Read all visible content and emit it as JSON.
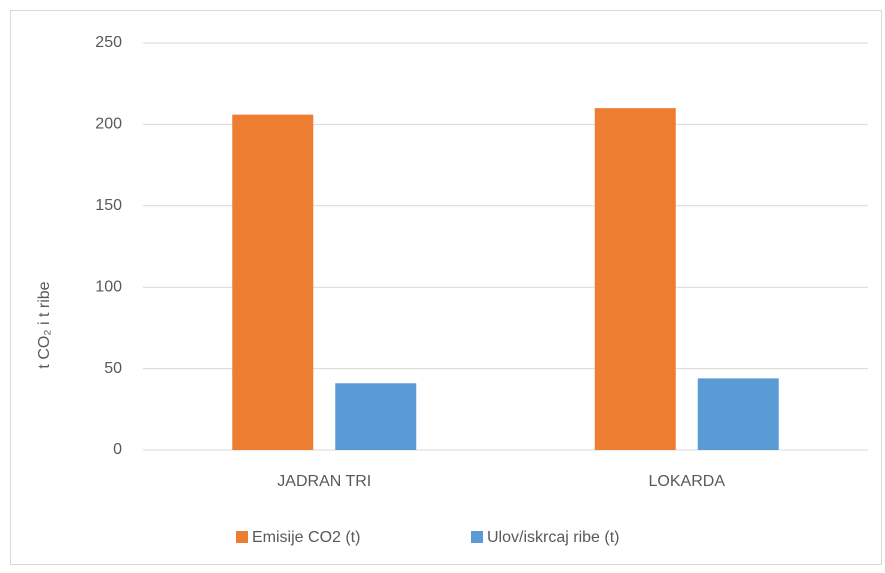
{
  "chart_data": {
    "type": "bar",
    "ylabel": "t CO₂ i t ribe",
    "categories": [
      "JADRAN TRI",
      "LOKARDA"
    ],
    "series": [
      {
        "name": "Emisije CO2 (t)",
        "color": "#ed7d31",
        "values": [
          206,
          210
        ]
      },
      {
        "name": "Ulov/iskrcaj ribe (t)",
        "color": "#5b9bd5",
        "values": [
          41,
          44
        ]
      }
    ],
    "ylim": [
      0,
      250
    ],
    "yticks": [
      0,
      50,
      100,
      150,
      200,
      250
    ],
    "grid": true,
    "legend": "bottom"
  }
}
